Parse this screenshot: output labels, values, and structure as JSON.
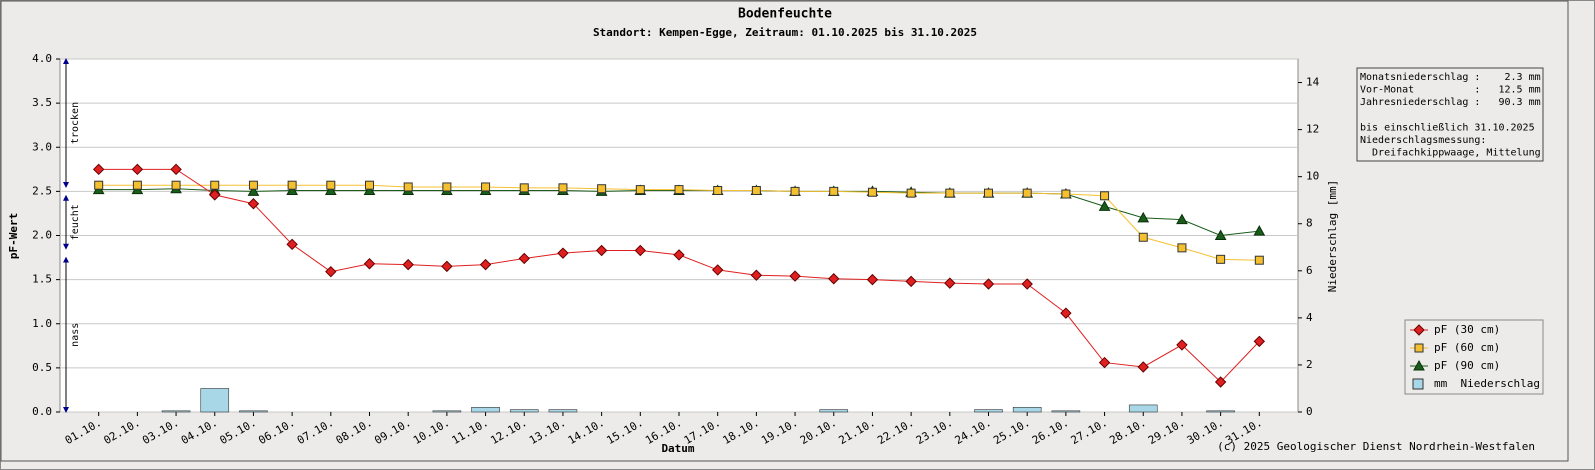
{
  "chart_data": {
    "type": "line",
    "title": "Bodenfeuchte",
    "subtitle": "Standort: Kempen-Egge, Zeitraum: 01.10.2025 bis 31.10.2025",
    "x_label": "Datum",
    "y_label": "pF-Wert",
    "y2_label": "Niederschlag [mm]",
    "categories": [
      "01.10.",
      "02.10.",
      "03.10.",
      "04.10.",
      "05.10.",
      "06.10.",
      "07.10.",
      "08.10.",
      "09.10.",
      "10.10.",
      "11.10.",
      "12.10.",
      "13.10.",
      "14.10.",
      "15.10.",
      "16.10.",
      "17.10.",
      "18.10.",
      "19.10.",
      "20.10.",
      "21.10.",
      "22.10.",
      "23.10.",
      "24.10.",
      "25.10.",
      "26.10.",
      "27.10.",
      "28.10.",
      "29.10.",
      "30.10.",
      "31.10."
    ],
    "series": [
      {
        "name": "mm  Niederschlag",
        "type": "bar",
        "axis": "y2",
        "color": "#a8d8e8",
        "values": [
          0,
          0,
          0.05,
          1.0,
          0.05,
          0,
          0,
          0,
          0,
          0.05,
          0.2,
          0.1,
          0.1,
          0,
          0,
          0,
          0,
          0,
          0,
          0.1,
          0,
          0,
          0,
          0.1,
          0.2,
          0.05,
          0,
          0.3,
          0,
          0.05,
          0
        ]
      },
      {
        "name": "pF (90 cm)",
        "type": "line",
        "marker": "triangle",
        "color": "#1a5c1a",
        "values": [
          2.52,
          2.52,
          2.53,
          2.51,
          2.5,
          2.51,
          2.51,
          2.51,
          2.51,
          2.51,
          2.51,
          2.51,
          2.51,
          2.5,
          2.51,
          2.51,
          2.51,
          2.51,
          2.5,
          2.5,
          2.5,
          2.49,
          2.48,
          2.48,
          2.48,
          2.47,
          2.33,
          2.2,
          2.18,
          2.0,
          2.05
        ]
      },
      {
        "name": "pF (60 cm)",
        "type": "line",
        "marker": "square",
        "color": "#f5c030",
        "values": [
          2.57,
          2.57,
          2.57,
          2.57,
          2.57,
          2.57,
          2.57,
          2.57,
          2.55,
          2.55,
          2.55,
          2.54,
          2.54,
          2.53,
          2.52,
          2.52,
          2.51,
          2.51,
          2.5,
          2.5,
          2.49,
          2.48,
          2.48,
          2.48,
          2.48,
          2.47,
          2.45,
          1.98,
          1.86,
          1.73,
          1.72
        ]
      },
      {
        "name": "pF (30 cm)",
        "type": "line",
        "marker": "diamond",
        "color": "#e02020",
        "values": [
          2.75,
          2.75,
          2.75,
          2.46,
          2.36,
          1.9,
          1.59,
          1.68,
          1.67,
          1.65,
          1.67,
          1.74,
          1.8,
          1.83,
          1.83,
          1.78,
          1.61,
          1.55,
          1.54,
          1.51,
          1.5,
          1.48,
          1.46,
          1.45,
          1.45,
          1.12,
          0.56,
          0.51,
          0.76,
          0.34,
          0.8
        ]
      }
    ],
    "legend_order": [
      3,
      2,
      1,
      0
    ],
    "ylim": [
      0,
      4
    ],
    "yticks": [
      {
        "value": 0,
        "label": "0.0"
      },
      {
        "value": 0.5,
        "label": "0.5"
      },
      {
        "value": 1,
        "label": "1.0"
      },
      {
        "value": 1.5,
        "label": "1.5"
      },
      {
        "value": 2,
        "label": "2.0"
      },
      {
        "value": 2.5,
        "label": "2.5"
      },
      {
        "value": 3,
        "label": "3.0"
      },
      {
        "value": 3.5,
        "label": "3.5"
      },
      {
        "value": 4,
        "label": "4.0"
      }
    ],
    "y2lim": [
      0,
      15
    ],
    "y2ticks": [
      0,
      2,
      4,
      6,
      8,
      10,
      12,
      14
    ],
    "grid": true,
    "zones": [
      {
        "label": "trocken",
        "range": [
          2.55,
          4.0
        ]
      },
      {
        "label": "feucht",
        "range": [
          1.85,
          2.45
        ]
      },
      {
        "label": "nass",
        "range": [
          0,
          1.75
        ]
      }
    ],
    "info_box": [
      [
        "Monatsniederschlag :    2.3 mm",
        "Vor-Monat          :   12.5 mm",
        "Jahresniederschlag :   90.3 mm"
      ],
      [
        "bis einschließlich 31.10.2025",
        "Niederschlagsmessung:",
        "  Dreifachkippwaage, Mittelung"
      ]
    ],
    "copyright": "(c) 2025 Geologischer Dienst Nordrhein-Westfalen"
  }
}
